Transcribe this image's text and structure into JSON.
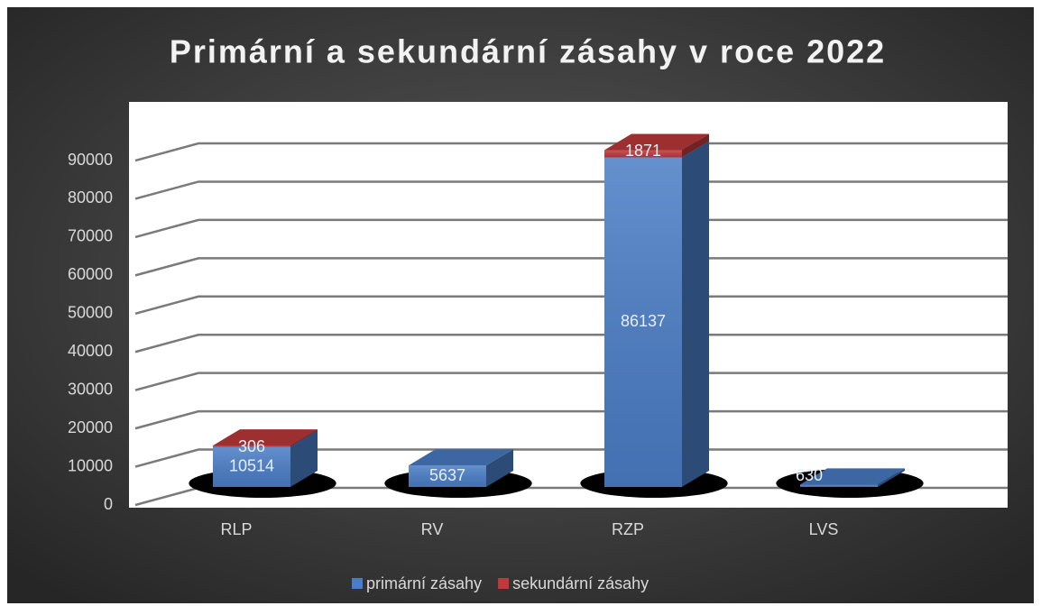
{
  "chart_data": {
    "type": "bar3d_stacked",
    "title": "Primární a sekundární zásahy v roce 2022",
    "categories": [
      "RLP",
      "RV",
      "RZP",
      "LVS"
    ],
    "series": [
      {
        "name": "primární zásahy",
        "color": "#4a7dc6",
        "values": [
          10514,
          5637,
          86137,
          630
        ]
      },
      {
        "name": "sekundární zásahy",
        "color": "#c0393b",
        "values": [
          306,
          null,
          1871,
          null
        ]
      }
    ],
    "ylim": [
      0,
      100000
    ],
    "yticks": [
      0,
      10000,
      20000,
      30000,
      40000,
      50000,
      60000,
      70000,
      80000,
      90000
    ],
    "grid": true,
    "legend": "bottom"
  }
}
